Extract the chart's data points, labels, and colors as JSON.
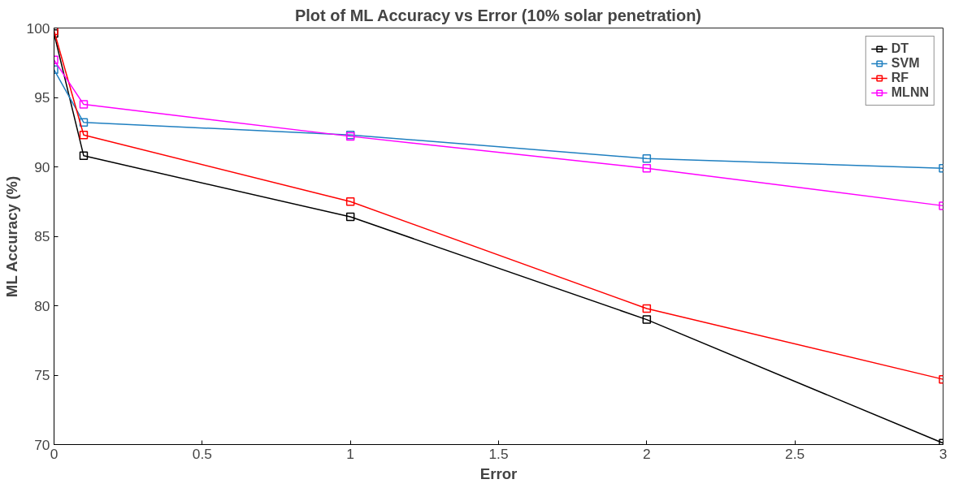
{
  "chart_data": {
    "type": "line",
    "title": "Plot of ML Accuracy vs Error (10% solar penetration)",
    "xlabel": "Error",
    "ylabel": "ML Accuracy (%)",
    "x": [
      0,
      0.1,
      1,
      2,
      3
    ],
    "series": [
      {
        "name": "DT",
        "color": "#000000",
        "values": [
          99.6,
          90.8,
          86.4,
          79.0,
          70.1
        ]
      },
      {
        "name": "SVM",
        "color": "#1f7fc0",
        "values": [
          97.0,
          93.2,
          92.3,
          90.6,
          89.9
        ]
      },
      {
        "name": "RF",
        "color": "#ff0000",
        "values": [
          99.8,
          92.3,
          87.5,
          79.8,
          74.7
        ]
      },
      {
        "name": "MLNN",
        "color": "#ff00ff",
        "values": [
          97.7,
          94.5,
          92.2,
          89.9,
          87.2
        ]
      }
    ],
    "xlim": [
      0,
      3
    ],
    "ylim": [
      70,
      100
    ],
    "xticks": [
      0,
      0.5,
      1,
      1.5,
      2,
      2.5,
      3
    ],
    "yticks": [
      70,
      75,
      80,
      85,
      90,
      95,
      100
    ],
    "grid": false,
    "legend": "top right",
    "marker": "square",
    "line_style": "solid"
  }
}
